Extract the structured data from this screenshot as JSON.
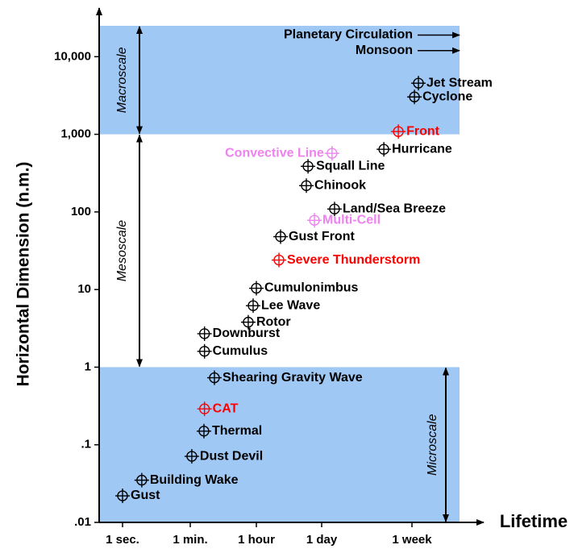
{
  "chart_data": {
    "type": "scatter",
    "ylabel": "Horizontal Dimension (n.m.)",
    "xlabel": "Lifetime",
    "log_x": true,
    "log_y": true,
    "xlim": [
      0.243,
      1680000
    ],
    "ylim": [
      0.01,
      25000
    ],
    "xticks": [
      {
        "value": 1,
        "label": "1 sec."
      },
      {
        "value": 60,
        "label": "1 min."
      },
      {
        "value": 3600,
        "label": "1 hour"
      },
      {
        "value": 86400,
        "label": "1 day"
      },
      {
        "value": 604800,
        "label": "1 week"
      }
    ],
    "yticks": [
      {
        "value": 0.01,
        "label": ".01"
      },
      {
        "value": 0.1,
        "label": ".1"
      },
      1,
      10,
      100,
      {
        "value": 1000,
        "label": "1,000"
      },
      {
        "value": 10000,
        "label": "10,000"
      }
    ],
    "point_labels": [
      "Gust",
      "Building Wake",
      "Dust Devil",
      "Thermal",
      "CAT",
      "Shearing Gravity Wave",
      "Cumulus",
      "Downburst",
      "Rotor",
      "Lee Wave",
      "Cumulonimbus",
      "Severe Thunderstorm",
      "Gust Front",
      "Multi-Cell",
      "Land/Sea Breeze",
      "Chinook",
      "Squall Line",
      "Convective Line",
      "Hurricane",
      "Front",
      "Cyclone",
      "Jet Stream"
    ],
    "x": [
      1,
      3.2,
      66,
      140,
      145,
      268,
      145,
      145,
      2180,
      2950,
      3600,
      10800,
      11700,
      60800,
      114000,
      41000,
      44500,
      108000,
      330000,
      451000,
      638000,
      695000
    ],
    "values": [
      0.022,
      0.035,
      0.071,
      0.15,
      0.29,
      0.73,
      1.6,
      2.7,
      3.8,
      6.2,
      10.4,
      24,
      48,
      78,
      109,
      218,
      387,
      569,
      641,
      1084,
      3030,
      4560
    ],
    "colors": [
      "#000000",
      "#000000",
      "#000000",
      "#000000",
      "#ff0000",
      "#000000",
      "#000000",
      "#000000",
      "#000000",
      "#000000",
      "#000000",
      "#ff0000",
      "#000000",
      "#ee82ee",
      "#000000",
      "#000000",
      "#000000",
      "#ee82ee",
      "#000000",
      "#ff0000",
      "#000000",
      "#000000"
    ],
    "scales": [
      {
        "label": "Macroscale",
        "range": [
          1000,
          25000
        ],
        "fill": "#9fc8f5",
        "side": "left"
      },
      {
        "label": "Mesoscale",
        "range": [
          1,
          1000
        ],
        "side": "left"
      },
      {
        "label": "Microscale",
        "range": [
          0.01,
          1
        ],
        "fill": "#9fc8f5",
        "side": "right"
      }
    ],
    "annotations": [
      {
        "text": "Planetary Circulation",
        "y": 19000
      },
      {
        "text": "Monsoon",
        "y": 12000
      }
    ]
  }
}
